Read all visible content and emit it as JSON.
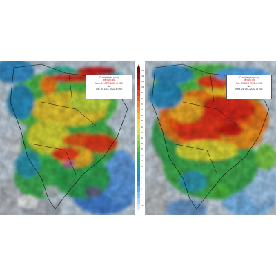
{
  "maps": [
    {
      "legend": {
        "title": "Precipitação (mm)",
        "subtitle": "período do",
        "from": "Mon, 19 DEC 2022 at 00Z",
        "separator": "-to-",
        "to": "Tue, 20 DEC 2022 at 00Z"
      }
    },
    {
      "legend": {
        "title": "Precipitação (mm)",
        "subtitle": "período do",
        "from": "Tue, 20 DEC 2022 at 00Z",
        "separator": "-to-",
        "to": "Wed, 28 DEC 2022 at 00Z"
      }
    }
  ],
  "colorbar": {
    "labels": [
      "150",
      "130",
      "110",
      "100",
      "90",
      "80",
      "70",
      "60",
      "50",
      "45",
      "40",
      "35",
      "30",
      "25",
      "20",
      "15",
      "12",
      "10",
      "8",
      "6",
      "4",
      "3",
      "2",
      "1",
      "0.5"
    ],
    "colors": [
      "#7a0a0a",
      "#a00c0c",
      "#c81414",
      "#e21e1e",
      "#f23a1a",
      "#f65a18",
      "#f87a18",
      "#f99a22",
      "#fab82a",
      "#f8d030",
      "#e8e038",
      "#c8e040",
      "#a0d840",
      "#78cc40",
      "#4ec040",
      "#30b050",
      "#20a870",
      "#209c9a",
      "#2090c0",
      "#2880d8",
      "#3c90e8",
      "#5aa8f0",
      "#80c0f4",
      "#a8d6f8",
      "#d0e8fb"
    ]
  }
}
